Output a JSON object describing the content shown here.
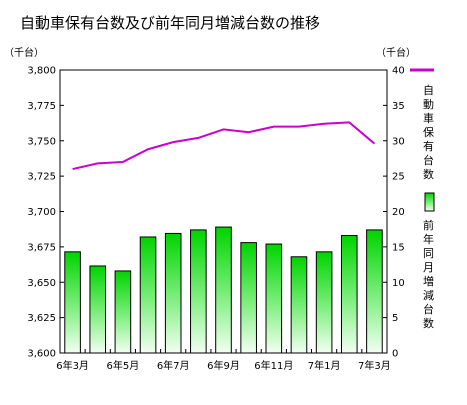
{
  "chart_data": {
    "type": "bar",
    "title": "自動車保有台数及び前年同月増減台数の推移",
    "categories": [
      "6年3月",
      "",
      "6年5月",
      "",
      "6年7月",
      "",
      "6年9月",
      "",
      "6年11月",
      "",
      "7年1月",
      "",
      "7年3月"
    ],
    "x_tick_labels": [
      "6年3月",
      "6年5月",
      "6年7月",
      "6年9月",
      "6年11月",
      "7年1月",
      "7年3月"
    ],
    "left_axis": {
      "unit_label": "（千台）",
      "ylim": [
        3600,
        3800
      ],
      "ticks": [
        "3,600",
        "3,625",
        "3,650",
        "3,675",
        "3,700",
        "3,725",
        "3,750",
        "3,775",
        "3,800"
      ]
    },
    "right_axis": {
      "unit_label": "（千台）",
      "ylim": [
        0,
        40
      ],
      "ticks": [
        "0",
        "5",
        "10",
        "15",
        "20",
        "25",
        "30",
        "35",
        "40"
      ]
    },
    "series": [
      {
        "name": "自動車保有台数",
        "type": "line",
        "axis": "left",
        "color": "#cc00cc",
        "values": [
          3730,
          3734,
          3735,
          3744,
          3749,
          3752,
          3758,
          3756,
          3760,
          3760,
          3762,
          3763,
          3748
        ]
      },
      {
        "name": "前年同月増減台数",
        "type": "bar",
        "axis": "right",
        "color": "#00cc00",
        "values": [
          14.3,
          12.3,
          11.6,
          16.4,
          16.9,
          17.4,
          17.8,
          15.6,
          15.4,
          13.6,
          14.3,
          16.6,
          17.4
        ]
      }
    ],
    "legend": {
      "placement": "right",
      "entries": [
        {
          "label": "自動車保有台数",
          "marker": "line"
        },
        {
          "label": "前年同月増減台数",
          "marker": "bar"
        }
      ]
    },
    "grid": false
  }
}
